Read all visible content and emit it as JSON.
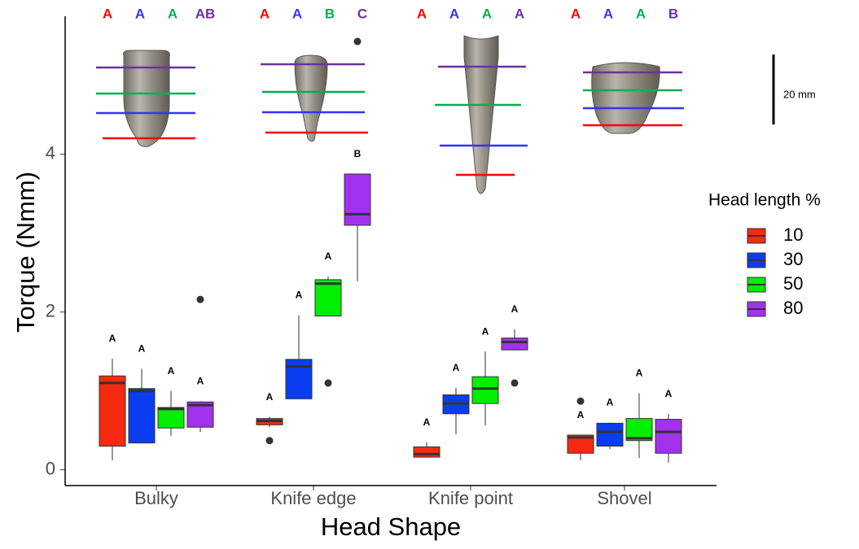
{
  "chart_data": {
    "type": "box",
    "x_label": "Head Shape",
    "y_label": "Torque (Nmm)",
    "categories": [
      "Bulky",
      "Knife edge",
      "Knife point",
      "Shovel"
    ],
    "ylim": [
      -0.2,
      5.75
    ],
    "yticks": [
      0,
      2,
      4
    ],
    "legend_title": "Head length %",
    "legend_position": "right",
    "scale_bar_label": "20 mm",
    "series": [
      {
        "name": "10",
        "color": "#f52a0e",
        "letter_color": "#ff0000",
        "letters": [
          "A",
          "A",
          "A",
          "A"
        ],
        "top_letters": [
          "A",
          "A",
          "A",
          "A"
        ],
        "stats": [
          {
            "low": 0.12,
            "q1": 0.3,
            "median": 1.1,
            "q3": 1.19,
            "high": 1.41,
            "outliers": []
          },
          {
            "low": 0.54,
            "q1": 0.57,
            "median": 0.62,
            "q3": 0.65,
            "high": 0.67,
            "outliers": [
              0.37
            ]
          },
          {
            "low": 0.16,
            "q1": 0.16,
            "median": 0.2,
            "q3": 0.29,
            "high": 0.35,
            "outliers": []
          },
          {
            "low": 0.12,
            "q1": 0.21,
            "median": 0.41,
            "q3": 0.44,
            "high": 0.44,
            "outliers": [
              0.87
            ]
          }
        ]
      },
      {
        "name": "30",
        "color": "#0a3df0",
        "letter_color": "#3333ff",
        "letters": [
          "A",
          "A",
          "A",
          "A"
        ],
        "top_letters": [
          "A",
          "A",
          "A",
          "A"
        ],
        "stats": [
          {
            "low": 0.34,
            "q1": 0.34,
            "median": 1.0,
            "q3": 1.03,
            "high": 1.28,
            "outliers": []
          },
          {
            "low": 0.9,
            "q1": 0.9,
            "median": 1.31,
            "q3": 1.4,
            "high": 1.96,
            "outliers": []
          },
          {
            "low": 0.45,
            "q1": 0.71,
            "median": 0.84,
            "q3": 0.95,
            "high": 1.04,
            "outliers": []
          },
          {
            "low": 0.26,
            "q1": 0.3,
            "median": 0.48,
            "q3": 0.59,
            "high": 0.6,
            "outliers": []
          }
        ]
      },
      {
        "name": "50",
        "color": "#00ee00",
        "letter_color": "#00b050",
        "letters": [
          "A",
          "A",
          "A",
          "A"
        ],
        "top_letters": [
          "A",
          "B",
          "A",
          "A"
        ],
        "stats": [
          {
            "low": 0.43,
            "q1": 0.53,
            "median": 0.77,
            "q3": 0.79,
            "high": 1.0,
            "outliers": []
          },
          {
            "low": 1.95,
            "q1": 1.95,
            "median": 2.36,
            "q3": 2.41,
            "high": 2.45,
            "outliers": [
              1.1
            ]
          },
          {
            "low": 0.56,
            "q1": 0.84,
            "median": 1.03,
            "q3": 1.18,
            "high": 1.5,
            "outliers": []
          },
          {
            "low": 0.15,
            "q1": 0.37,
            "median": 0.4,
            "q3": 0.65,
            "high": 0.97,
            "outliers": []
          }
        ]
      },
      {
        "name": "80",
        "color": "#a232ee",
        "letter_color": "#7030a0",
        "letters": [
          "A",
          "B",
          "A",
          "A"
        ],
        "top_letters": [
          "AB",
          "C",
          "A",
          "B"
        ],
        "stats": [
          {
            "low": 0.48,
            "q1": 0.54,
            "median": 0.82,
            "q3": 0.86,
            "high": 0.87,
            "outliers": [
              2.16
            ]
          },
          {
            "low": 2.39,
            "q1": 3.1,
            "median": 3.24,
            "q3": 3.75,
            "high": 3.75,
            "outliers": [
              5.43
            ]
          },
          {
            "low": 1.52,
            "q1": 1.52,
            "median": 1.62,
            "q3": 1.67,
            "high": 1.78,
            "outliers": [
              1.1
            ]
          },
          {
            "low": 0.09,
            "q1": 0.21,
            "median": 0.48,
            "q3": 0.64,
            "high": 0.71,
            "outliers": []
          }
        ]
      }
    ]
  }
}
